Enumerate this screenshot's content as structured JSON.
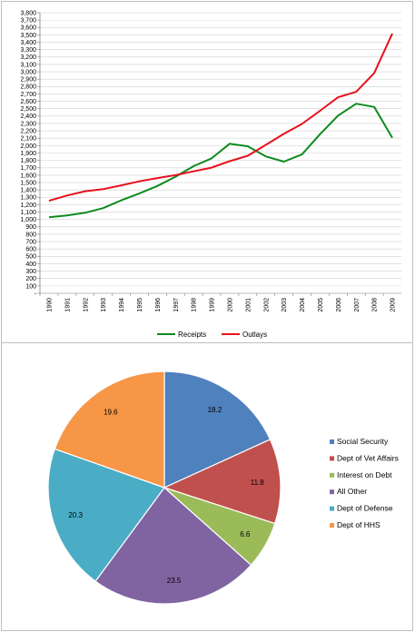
{
  "chart_data": [
    {
      "type": "line",
      "x": [
        "1990",
        "1991",
        "1992",
        "1993",
        "1994",
        "1995",
        "1996",
        "1997",
        "1998",
        "1999",
        "2000",
        "2001",
        "2002",
        "2003",
        "2004",
        "2005",
        "2006",
        "2007",
        "2008",
        "2009"
      ],
      "series": [
        {
          "name": "Receipts",
          "color": "#0f8a1f",
          "values": [
            1031,
            1055,
            1091,
            1154,
            1259,
            1352,
            1453,
            1579,
            1722,
            1827,
            2025,
            1991,
            1853,
            1783,
            1880,
            2154,
            2407,
            2568,
            2524,
            2105
          ]
        },
        {
          "name": "Outlays",
          "color": "#e8101c",
          "values": [
            1253,
            1324,
            1382,
            1410,
            1462,
            1516,
            1561,
            1601,
            1652,
            1702,
            1789,
            1863,
            2011,
            2160,
            2293,
            2472,
            2655,
            2729,
            2983,
            3518
          ]
        }
      ],
      "ylim": [
        0,
        3800
      ],
      "yticks": [
        "-",
        "100",
        "200",
        "300",
        "400",
        "500",
        "600",
        "700",
        "800",
        "900",
        "1,000",
        "1,100",
        "1,200",
        "1,300",
        "1,400",
        "1,500",
        "1,600",
        "1,700",
        "1,800",
        "1,900",
        "2,000",
        "2,100",
        "2,200",
        "2,300",
        "2,400",
        "2,500",
        "2,600",
        "2,700",
        "2,800",
        "2,900",
        "3,000",
        "3,100",
        "3,200",
        "3,300",
        "3,400",
        "3,500",
        "3,600",
        "3,700",
        "3,800"
      ],
      "grid": true,
      "legend_position": "bottom"
    },
    {
      "type": "pie",
      "slices": [
        {
          "label": "Social Security",
          "value": 18.2,
          "value_label": "18.2",
          "color": "#4f81bd"
        },
        {
          "label": "Dept of Vet Affairs",
          "value": 11.8,
          "value_label": "11.8",
          "color": "#c0504d"
        },
        {
          "label": "Interest on Debt",
          "value": 6.6,
          "value_label": "6.6",
          "color": "#9bbb59"
        },
        {
          "label": "All Other",
          "value": 23.5,
          "value_label": "23.5",
          "color": "#8064a2"
        },
        {
          "label": "Dept of Defense",
          "value": 20.3,
          "value_label": "20.3",
          "color": "#4bacc6"
        },
        {
          "label": "Dept of HHS",
          "value": 19.6,
          "value_label": "19.6",
          "color": "#f79646"
        }
      ],
      "legend_position": "right"
    }
  ]
}
